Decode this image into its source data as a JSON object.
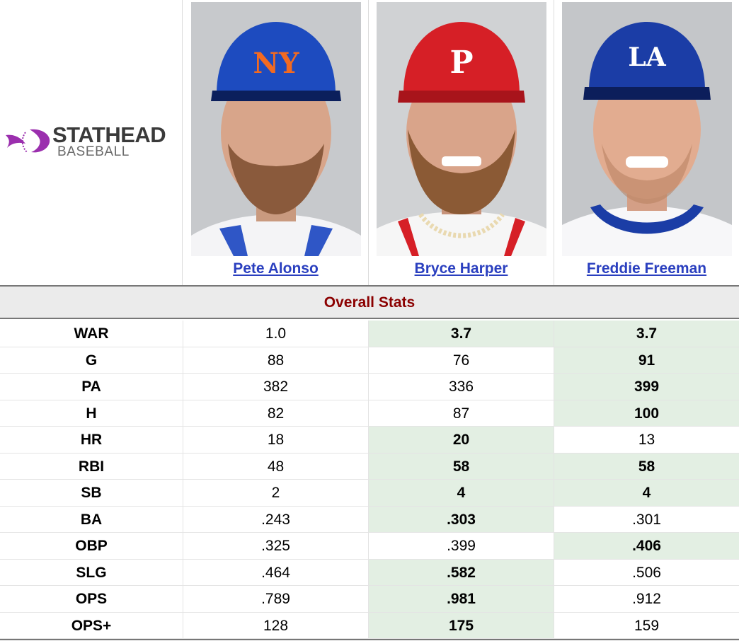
{
  "logo": {
    "brand": "STATHEAD",
    "sub": "BASEBALL"
  },
  "players": [
    {
      "name": "Pete Alonso",
      "cap_color": "#1d4bbf",
      "cap_logo": "NY",
      "cap_logo_color": "#f26a21"
    },
    {
      "name": "Bryce Harper",
      "cap_color": "#d61f26",
      "cap_logo": "P",
      "cap_logo_color": "#ffffff"
    },
    {
      "name": "Freddie Freeman",
      "cap_color": "#1b3da6",
      "cap_logo": "LA",
      "cap_logo_color": "#ffffff"
    }
  ],
  "section_title": "Overall Stats",
  "stats": [
    {
      "label": "WAR",
      "values": [
        "1.0",
        "3.7",
        "3.7"
      ],
      "best": [
        false,
        true,
        true
      ]
    },
    {
      "label": "G",
      "values": [
        "88",
        "76",
        "91"
      ],
      "best": [
        false,
        false,
        true
      ]
    },
    {
      "label": "PA",
      "values": [
        "382",
        "336",
        "399"
      ],
      "best": [
        false,
        false,
        true
      ]
    },
    {
      "label": "H",
      "values": [
        "82",
        "87",
        "100"
      ],
      "best": [
        false,
        false,
        true
      ]
    },
    {
      "label": "HR",
      "values": [
        "18",
        "20",
        "13"
      ],
      "best": [
        false,
        true,
        false
      ]
    },
    {
      "label": "RBI",
      "values": [
        "48",
        "58",
        "58"
      ],
      "best": [
        false,
        true,
        true
      ]
    },
    {
      "label": "SB",
      "values": [
        "2",
        "4",
        "4"
      ],
      "best": [
        false,
        true,
        true
      ]
    },
    {
      "label": "BA",
      "values": [
        ".243",
        ".303",
        ".301"
      ],
      "best": [
        false,
        true,
        false
      ]
    },
    {
      "label": "OBP",
      "values": [
        ".325",
        ".399",
        ".406"
      ],
      "best": [
        false,
        false,
        true
      ]
    },
    {
      "label": "SLG",
      "values": [
        ".464",
        ".582",
        ".506"
      ],
      "best": [
        false,
        true,
        false
      ]
    },
    {
      "label": "OPS",
      "values": [
        ".789",
        ".981",
        ".912"
      ],
      "best": [
        false,
        true,
        false
      ]
    },
    {
      "label": "OPS+",
      "values": [
        "128",
        "175",
        "159"
      ],
      "best": [
        false,
        true,
        false
      ]
    }
  ],
  "colors": {
    "link": "#2a3fbf",
    "section_title": "#8b0000",
    "best_bg": "#e3efe3",
    "logo_purple": "#9b2fae"
  }
}
